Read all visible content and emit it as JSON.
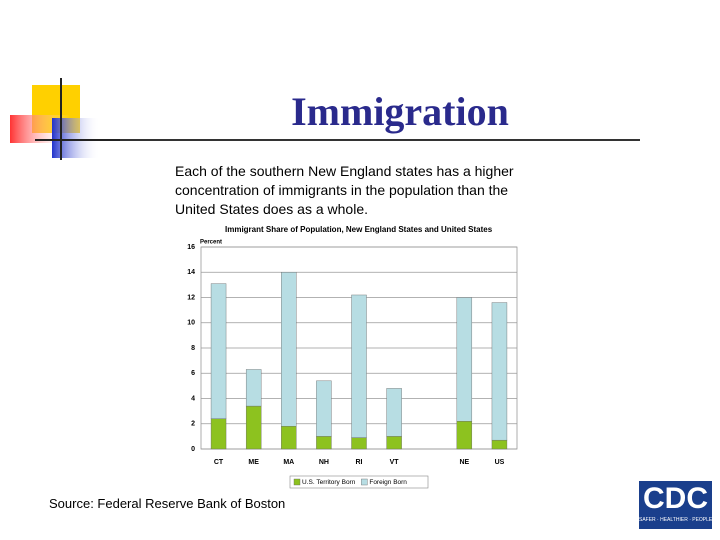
{
  "slide": {
    "title": "Immigration",
    "body": "Each of the southern New England states has a higher concentration of immigrants in the population than the United States does as a whole.",
    "source": "Source: Federal Reserve Bank of Boston",
    "logo": "CDC",
    "logo_tagline": "SAFER · HEALTHIER · PEOPLE"
  },
  "chart_data": {
    "type": "stacked_bar",
    "title": "Immigrant Share of Population, New England States and United States",
    "y_label": "Percent",
    "categories": [
      "CT",
      "ME",
      "MA",
      "NH",
      "RI",
      "VT",
      null,
      "NE",
      "US"
    ],
    "series": [
      {
        "name": "U.S. Territory Born",
        "color": "#8dc21f",
        "values": [
          2.4,
          3.4,
          1.8,
          1.0,
          0.9,
          1.0,
          null,
          2.2,
          0.7
        ]
      },
      {
        "name": "Foreign Born",
        "color": "#b7dde3",
        "values": [
          10.7,
          2.9,
          12.2,
          4.4,
          11.3,
          3.8,
          null,
          9.8,
          10.9
        ]
      }
    ],
    "ylim": [
      0,
      16
    ],
    "yticks": [
      0,
      2,
      4,
      6,
      8,
      10,
      12,
      14,
      16
    ],
    "grid": true,
    "legend": "bottom"
  }
}
